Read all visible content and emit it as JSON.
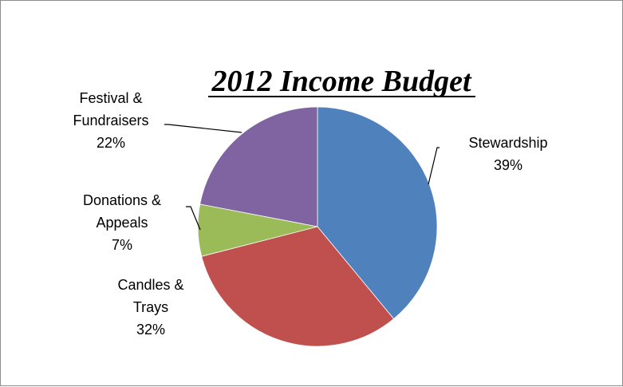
{
  "chart_data": {
    "type": "pie",
    "title": "2012 Income Budget",
    "slices": [
      {
        "name": "Stewardship",
        "value": 39,
        "label_lines": [
          "Stewardship",
          "39%"
        ],
        "color": "#4F81BD"
      },
      {
        "name": "Candles & Trays",
        "value": 32,
        "label_lines": [
          "Candles &",
          "Trays",
          "32%"
        ],
        "color": "#C0504D"
      },
      {
        "name": "Donations & Appeals",
        "value": 7,
        "label_lines": [
          "Donations &",
          "Appeals",
          "7%"
        ],
        "color": "#9BBB59"
      },
      {
        "name": "Festival & Fundraisers",
        "value": 22,
        "label_lines": [
          "Festival &",
          "Fundraisers",
          "22%"
        ],
        "color": "#8064A2"
      }
    ],
    "legend": "none",
    "start_angle": "12 o'clock",
    "direction": "clockwise"
  }
}
